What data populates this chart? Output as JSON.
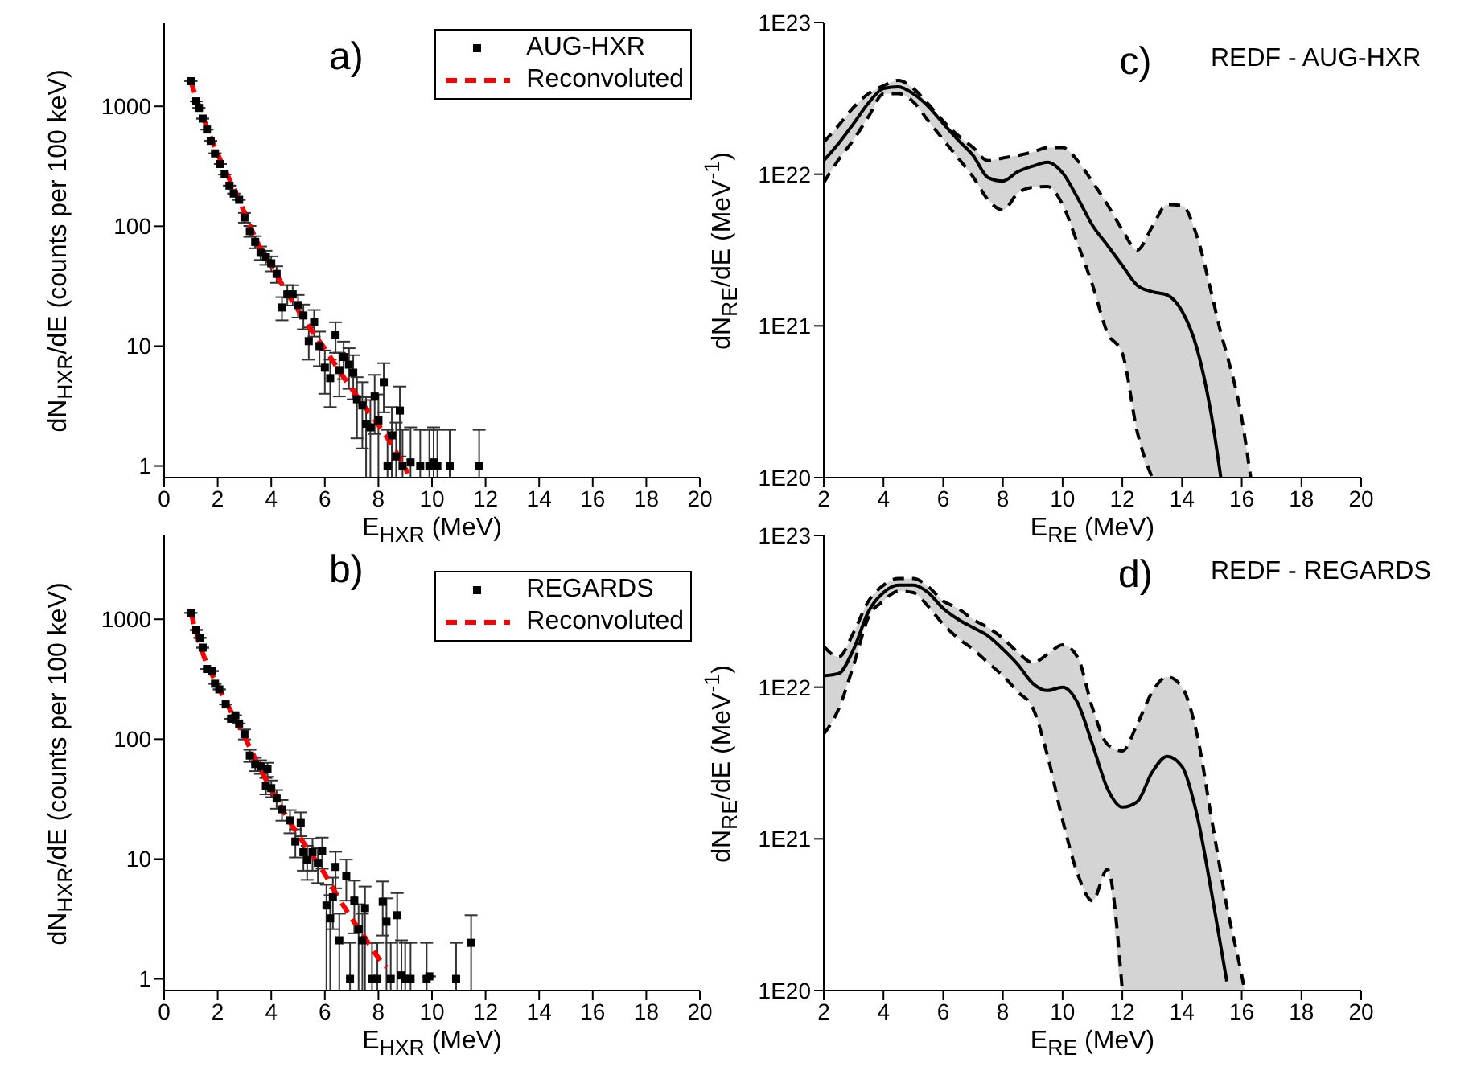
{
  "chart_data": [
    {
      "type": "scatter",
      "xlabel": "E$_{HXR}$ (MeV)",
      "ylabel": "dN$_{HXR}$/dE (counts per 100 keV)",
      "annotations": [
        "a)"
      ],
      "log": "y",
      "legend": "top right",
      "xlim": [
        0,
        20
      ],
      "xticks": [
        0,
        2,
        4,
        6,
        8,
        10,
        12,
        14,
        16,
        18,
        20
      ],
      "ylim": [
        0.8,
        5000
      ],
      "yticks": [
        1,
        10,
        100,
        1000
      ],
      "series": [
        {
          "name": "AUG-HXR",
          "color": "#000000",
          "marker": "square",
          "x": [
            1.0,
            1.2,
            1.3,
            1.44,
            1.6,
            1.74,
            1.9,
            2.1,
            2.26,
            2.44,
            2.6,
            2.8,
            3.0,
            3.2,
            3.4,
            3.6,
            3.8,
            4.0,
            4.2,
            4.4,
            4.6,
            4.8,
            5.0,
            5.2,
            5.4,
            5.6,
            5.8,
            6.0,
            6.2,
            6.4,
            6.54,
            6.7,
            6.9,
            7.06,
            7.2,
            7.4,
            7.54,
            7.7,
            7.86,
            8.0,
            8.2,
            8.34,
            8.5,
            8.66,
            8.8,
            8.9,
            9.2,
            9.56,
            9.9,
            10.06,
            10.2,
            10.66,
            11.76
          ],
          "values": [
            1620,
            1100,
            970,
            790,
            640,
            515,
            405,
            330,
            270,
            218,
            187,
            166,
            118,
            91,
            74,
            60,
            55,
            49,
            40,
            21,
            27,
            27,
            22,
            18,
            11,
            16,
            10,
            6.6,
            5.4,
            12.3,
            6.3,
            8.1,
            7.0,
            6.0,
            3.6,
            3.2,
            2.25,
            2.1,
            3.8,
            2.4,
            5.0,
            1,
            1.8,
            1.2,
            2.9,
            1,
            1.07,
            1,
            1,
            1.07,
            1,
            1,
            1
          ],
          "errors": [
            null,
            null,
            null,
            null,
            null,
            null,
            null,
            null,
            null,
            null,
            null,
            null,
            11,
            9.5,
            8.6,
            7.7,
            7.4,
            7,
            6.3,
            4.6,
            5.2,
            5.2,
            4.7,
            4.2,
            3.3,
            4,
            3.2,
            2.6,
            2.3,
            3.5,
            2.5,
            2.8,
            2.6,
            2.4,
            1.9,
            1.8,
            [
              0.8,
              3.75
            ],
            [
              0.8,
              3.55
            ],
            1.95,
            [
              0.8,
              3.95
            ],
            2.2,
            [
              0.8,
              2
            ],
            [
              0.8,
              3.1
            ],
            [
              0.8,
              2.3
            ],
            1.7,
            [
              0.8,
              2
            ],
            [
              0.8,
              2.1
            ],
            [
              0.8,
              2
            ],
            [
              0.8,
              2
            ],
            [
              0.8,
              2.1
            ],
            [
              0.8,
              2
            ],
            [
              0.8,
              2
            ],
            [
              0.8,
              2
            ]
          ]
        },
        {
          "name": "Reconvoluted",
          "type": "line",
          "color": "#ff0000",
          "line_style": "dashed",
          "x": [
            1,
            1.5,
            2,
            2.5,
            3,
            3.5,
            4,
            4.5,
            5,
            5.5,
            6,
            6.5,
            7,
            7.5,
            8,
            8.5,
            9.1
          ],
          "values": [
            1600,
            760,
            400,
            230,
            130,
            72,
            47,
            30,
            20,
            13.5,
            9.5,
            6.4,
            4.4,
            3.1,
            2.2,
            1.5,
            0.87
          ]
        }
      ]
    },
    {
      "type": "line",
      "xlabel": "E$_{RE}$ (MeV)",
      "ylabel": "dN$_{RE}$/dE (MeV$^{-1}$)",
      "annotations": [
        "c)",
        "REDF - AUG-HXR"
      ],
      "log": "y",
      "xlim": [
        2,
        20
      ],
      "xticks": [
        2,
        4,
        6,
        8,
        10,
        12,
        14,
        16,
        18,
        20
      ],
      "ylim": [
        1e+20,
        1e+23
      ],
      "yticks": [
        {
          "value": 1e+20,
          "label": "1E20"
        },
        {
          "value": 1e+21,
          "label": "1E21"
        },
        {
          "value": 1e+22,
          "label": "1E22"
        },
        {
          "value": 1e+23,
          "label": "1E23"
        }
      ],
      "series": [
        {
          "color": "#000000",
          "x": [
            2,
            2.5,
            3,
            3.5,
            4,
            4.5,
            5,
            5.5,
            6,
            6.5,
            7,
            7.5,
            8,
            8.5,
            9,
            9.5,
            10,
            10.5,
            11,
            11.5,
            12,
            12.5,
            13,
            13.5,
            14,
            14.5,
            15,
            15.3,
            15.5,
            16,
            16.3
          ],
          "values": [
            1.23e+22,
            1.6e+22,
            2.16e+22,
            2.95e+22,
            3.67e+22,
            3.77e+22,
            3.39e+22,
            2.8e+22,
            2.16e+22,
            1.68e+22,
            1.33e+22,
            9.5e+21,
            9e+21,
            1.04e+22,
            1.13e+22,
            1.2e+22,
            1.02e+22,
            7e+21,
            4.6e+21,
            3.4e+21,
            2.5e+21,
            1.85e+21,
            1.68e+21,
            1.6e+21,
            1.25e+21,
            7.1e+20,
            2.46e+20,
            1e+20,
            null,
            null,
            null
          ],
          "upper": [
            1.63e+22,
            2.1e+22,
            2.76e+22,
            3.4e+22,
            3.83e+22,
            4.15e+22,
            3.67e+22,
            2.9e+22,
            2.24e+22,
            1.8e+22,
            1.5e+22,
            1.23e+22,
            1.28e+22,
            1.33e+22,
            1.4e+22,
            1.5e+22,
            1.5e+22,
            1.23e+22,
            8.9e+21,
            6.3e+21,
            4.3e+21,
            3.16e+21,
            4.5e+21,
            6.3e+21,
            6.2e+21,
            3.9e+21,
            1.6e+21,
            9e+20,
            6.5e+20,
            2.46e+20,
            1e+20
          ],
          "lower": [
            8.8e+21,
            1.25e+22,
            1.69e+22,
            2.4e+22,
            3.39e+22,
            3.4e+22,
            3e+22,
            2.25e+22,
            1.69e+22,
            1.28e+22,
            9.6e+21,
            6.8e+21,
            5.8e+21,
            7.5e+21,
            8.2e+21,
            8.3e+21,
            6.3e+21,
            3.5e+21,
            1.86e+21,
            9e+20,
            6.6e+20,
            2e+20,
            1e+20,
            1e+20,
            1e+20,
            1e+20,
            1e+20,
            1e+20,
            1e+20,
            1e+20,
            1e+20
          ]
        },
        {
          "color": "#000000",
          "line_style": "dashed",
          "x": [
            2,
            2.5,
            3,
            3.5,
            4,
            4.5,
            5,
            5.5,
            6,
            6.5,
            7,
            7.5,
            8,
            8.5,
            9,
            9.5,
            10,
            10.5,
            11,
            11.5,
            12,
            12.5,
            13,
            13.5,
            14,
            14.5,
            15,
            15.3,
            15.5,
            16,
            16.3
          ],
          "values": [
            1.63e+22,
            2.1e+22,
            2.76e+22,
            3.4e+22,
            3.83e+22,
            4.15e+22,
            3.67e+22,
            2.9e+22,
            2.24e+22,
            1.8e+22,
            1.5e+22,
            1.23e+22,
            1.28e+22,
            1.33e+22,
            1.4e+22,
            1.5e+22,
            1.5e+22,
            1.23e+22,
            8.9e+21,
            6.3e+21,
            4.3e+21,
            3.16e+21,
            4.5e+21,
            6.3e+21,
            6.2e+21,
            3.9e+21,
            1.6e+21,
            9e+20,
            6.5e+20,
            2.46e+20,
            1e+20
          ]
        },
        {
          "color": "#000000",
          "line_style": "dashed",
          "x": [
            2,
            2.5,
            3,
            3.5,
            4,
            4.5,
            5,
            5.5,
            6,
            6.5,
            7,
            7.5,
            8,
            8.5,
            9,
            9.5,
            10,
            10.5,
            11,
            11.5,
            12,
            12.5,
            13
          ],
          "values": [
            8.8e+21,
            1.25e+22,
            1.69e+22,
            2.4e+22,
            3.39e+22,
            3.4e+22,
            3e+22,
            2.25e+22,
            1.69e+22,
            1.28e+22,
            9.6e+21,
            6.8e+21,
            5.8e+21,
            7.5e+21,
            8.2e+21,
            8.3e+21,
            6.3e+21,
            3.5e+21,
            1.86e+21,
            9e+20,
            6.6e+20,
            2e+20,
            1e+20
          ]
        }
      ]
    },
    {
      "type": "scatter",
      "xlabel": "E$_{HXR}$ (MeV)",
      "ylabel": "dN$_{HXR}$/dE (counts per 100 keV)",
      "annotations": [
        "b)"
      ],
      "log": "y",
      "legend": "top right",
      "xlim": [
        0,
        20
      ],
      "xticks": [
        0,
        2,
        4,
        6,
        8,
        10,
        12,
        14,
        16,
        18,
        20
      ],
      "ylim": [
        0.8,
        5000
      ],
      "yticks": [
        1,
        10,
        100,
        1000
      ],
      "series": [
        {
          "name": "REGARDS",
          "color": "#000000",
          "marker": "square",
          "x": [
            1.0,
            1.2,
            1.34,
            1.44,
            1.6,
            1.8,
            1.9,
            2.06,
            2.3,
            2.5,
            2.66,
            2.8,
            3.0,
            3.2,
            3.4,
            3.6,
            3.8,
            3.86,
            4.0,
            4.2,
            4.4,
            4.7,
            4.9,
            5.1,
            5.2,
            5.34,
            5.54,
            5.74,
            5.9,
            6.06,
            6.2,
            6.3,
            6.4,
            6.54,
            6.8,
            6.94,
            7.1,
            7.26,
            7.4,
            7.5,
            7.76,
            7.96,
            8.16,
            8.3,
            8.46,
            8.7,
            8.86,
            9.0,
            9.2,
            9.8,
            9.9,
            10.9,
            11.46
          ],
          "values": [
            1130,
            815,
            700,
            580,
            385,
            370,
            290,
            260,
            195,
            148,
            158,
            135,
            110,
            73,
            62,
            59,
            41,
            56,
            39,
            32,
            26,
            21,
            14,
            20,
            11.4,
            9.8,
            11.4,
            9.3,
            11.7,
            4.1,
            3.2,
            4.8,
            8.6,
            2.1,
            7.2,
            1,
            4.5,
            2.6,
            2.1,
            3.9,
            1,
            1,
            4.4,
            3.0,
            1,
            3.4,
            1.07,
            1,
            1,
            1,
            1.05,
            1,
            2.0
          ],
          "errors": [
            null,
            null,
            null,
            null,
            null,
            null,
            null,
            null,
            null,
            null,
            null,
            null,
            10.5,
            8.5,
            7.9,
            7.7,
            6.4,
            7.5,
            6.2,
            5.7,
            5.1,
            4.6,
            3.7,
            4.5,
            3.4,
            3.1,
            3.4,
            3,
            3.4,
            [
              0.8,
              6.1
            ],
            [
              0.8,
              5
            ],
            2.2,
            2.9,
            [
              0.8,
              3.5
            ],
            2.7,
            [
              0.8,
              2
            ],
            2.1,
            [
              0.8,
              4.2
            ],
            [
              0.8,
              3.5
            ],
            [
              0.8,
              5.9
            ],
            [
              0.8,
              2
            ],
            [
              0.8,
              2
            ],
            2.1,
            [
              0.8,
              4.7
            ],
            [
              0.8,
              2
            ],
            [
              0.8,
              5.2
            ],
            [
              0.8,
              2.1
            ],
            [
              0.8,
              2
            ],
            [
              0.8,
              2
            ],
            [
              0.8,
              2
            ],
            null,
            [
              0.8,
              2
            ],
            [
              0.8,
              3.4
            ]
          ]
        },
        {
          "name": "Reconvoluted",
          "type": "line",
          "color": "#ff0000",
          "line_style": "dashed",
          "x": [
            1,
            1.5,
            2,
            2.5,
            3,
            3.5,
            4,
            4.5,
            5,
            5.5,
            6,
            6.5,
            7,
            7.5,
            8,
            8.3
          ],
          "values": [
            1130,
            480,
            280,
            170,
            105,
            62,
            38,
            24,
            16,
            11,
            7.5,
            4.8,
            3.2,
            2.2,
            1.5,
            1.25
          ]
        }
      ]
    },
    {
      "type": "line",
      "xlabel": "E$_{RE}$ (MeV)",
      "ylabel": "dN$_{RE}$/dE (MeV$^{-1}$)",
      "annotations": [
        "d)",
        "REDF - REGARDS"
      ],
      "log": "y",
      "xlim": [
        2,
        20
      ],
      "xticks": [
        2,
        4,
        6,
        8,
        10,
        12,
        14,
        16,
        18,
        20
      ],
      "ylim": [
        1e+20,
        1e+23
      ],
      "yticks": [
        {
          "value": 1e+20,
          "label": "1E20"
        },
        {
          "value": 1e+21,
          "label": "1E21"
        },
        {
          "value": 1e+22,
          "label": "1E22"
        },
        {
          "value": 1e+23,
          "label": "1E23"
        }
      ],
      "series": [
        {
          "color": "#000000",
          "x": [
            2,
            2.5,
            3,
            3.5,
            4,
            4.5,
            5,
            5.5,
            6,
            6.5,
            7,
            7.5,
            8,
            8.5,
            9,
            9.5,
            10,
            10.5,
            11,
            11.5,
            12,
            12.5,
            13,
            13.5,
            14,
            14.5,
            15,
            15.5,
            16,
            16.1
          ],
          "values": [
            1.19e+22,
            1.23e+22,
            1.78e+22,
            3.16e+22,
            4.2e+22,
            4.7e+22,
            4.7e+22,
            4.2e+22,
            3.3e+22,
            2.8e+22,
            2.47e+22,
            2.18e+22,
            1.78e+22,
            1.41e+22,
            1.06e+22,
            9.5e+21,
            1e+22,
            7.9e+21,
            4.2e+21,
            2.15e+21,
            1.62e+21,
            1.76e+21,
            2.75e+21,
            3.5e+21,
            3e+21,
            1.44e+21,
            4.3e+20,
            1.15e+20,
            null,
            null
          ],
          "upper": [
            1.86e+22,
            1.58e+22,
            2.3e+22,
            3.7e+22,
            4.7e+22,
            5.2e+22,
            5.2e+22,
            4.6e+22,
            3.7e+22,
            3.3e+22,
            2.8e+22,
            2.47e+22,
            2.1e+22,
            1.7e+22,
            1.45e+22,
            1.65e+22,
            1.9e+22,
            1.58e+22,
            7.3e+21,
            4.2e+21,
            3.8e+21,
            5.7e+21,
            9.3e+21,
            1.17e+22,
            1e+22,
            4.9e+21,
            1.32e+21,
            3.6e+20,
            1.26e+20,
            1e+20
          ],
          "lower": [
            4.9e+21,
            7.2e+21,
            1.4e+22,
            2.9e+22,
            3.7e+22,
            4.3e+22,
            4.2e+22,
            3.4e+22,
            2.6e+22,
            2.1e+22,
            1.78e+22,
            1.45e+22,
            1.19e+22,
            9.3e+21,
            7.3e+21,
            3.5e+21,
            1.33e+21,
            5.9e+20,
            3.9e+20,
            6.3e+20,
            1e+20,
            1e+20,
            1e+20,
            1e+20,
            1e+20,
            1e+20,
            1e+20,
            1e+20,
            1e+20,
            1e+20
          ]
        },
        {
          "color": "#000000",
          "line_style": "dashed",
          "x": [
            2,
            2.5,
            3,
            3.5,
            4,
            4.5,
            5,
            5.5,
            6,
            6.5,
            7,
            7.5,
            8,
            8.5,
            9,
            9.5,
            10,
            10.5,
            11,
            11.5,
            12,
            12.5,
            13,
            13.5,
            14,
            14.5,
            15,
            15.5,
            16,
            16.1
          ],
          "values": [
            1.86e+22,
            1.58e+22,
            2.3e+22,
            3.7e+22,
            4.7e+22,
            5.2e+22,
            5.2e+22,
            4.6e+22,
            3.7e+22,
            3.3e+22,
            2.8e+22,
            2.47e+22,
            2.1e+22,
            1.7e+22,
            1.45e+22,
            1.65e+22,
            1.9e+22,
            1.58e+22,
            7.3e+21,
            4.2e+21,
            3.8e+21,
            5.7e+21,
            9.3e+21,
            1.17e+22,
            1e+22,
            4.9e+21,
            1.32e+21,
            3.6e+20,
            1.26e+20,
            1e+20
          ]
        },
        {
          "color": "#000000",
          "line_style": "dashed",
          "x": [
            2,
            2.5,
            3,
            3.5,
            4,
            4.5,
            5,
            5.5,
            6,
            6.5,
            7,
            7.5,
            8,
            8.5,
            9,
            9.5,
            10,
            10.5,
            11,
            11.5,
            12
          ],
          "values": [
            4.9e+21,
            7.2e+21,
            1.4e+22,
            2.9e+22,
            3.7e+22,
            4.3e+22,
            4.2e+22,
            3.4e+22,
            2.6e+22,
            2.1e+22,
            1.78e+22,
            1.45e+22,
            1.19e+22,
            9.3e+21,
            7.3e+21,
            3.5e+21,
            1.33e+21,
            5.9e+20,
            3.9e+20,
            6.3e+20,
            1e+20
          ]
        }
      ]
    }
  ]
}
